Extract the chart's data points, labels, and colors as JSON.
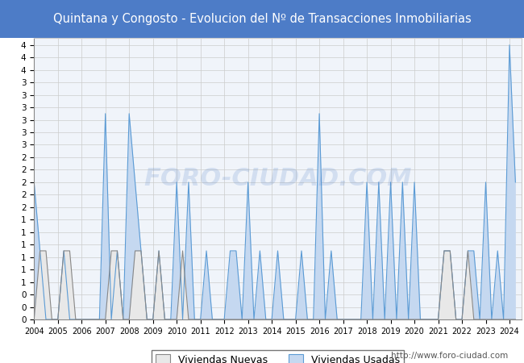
{
  "title": "Quintana y Congosto - Evolucion del Nº de Transacciones Inmobiliarias",
  "title_color": "white",
  "title_bg_color": "#4d7cc7",
  "years_labels": [
    2004,
    2005,
    2006,
    2007,
    2008,
    2009,
    2010,
    2011,
    2012,
    2013,
    2014,
    2015,
    2016,
    2017,
    2018,
    2019,
    2020,
    2021,
    2022,
    2023,
    2024
  ],
  "usadas_quarterly": [
    2,
    1,
    0,
    0,
    0,
    1,
    0,
    0,
    0,
    0,
    0,
    0,
    3,
    0,
    1,
    0,
    3,
    2,
    1,
    0,
    0,
    1,
    0,
    0,
    2,
    0,
    2,
    0,
    0,
    1,
    0,
    0,
    0,
    1,
    1,
    0,
    2,
    0,
    1,
    0,
    0,
    1,
    0,
    0,
    0,
    1,
    0,
    0,
    3,
    0,
    1,
    0,
    0,
    0,
    0,
    0,
    2,
    0,
    2,
    0,
    2,
    0,
    2,
    0,
    2,
    0,
    0,
    0,
    0,
    1,
    1,
    0,
    0,
    1,
    1,
    0,
    2,
    0,
    1,
    0,
    4,
    2
  ],
  "nuevas_quarterly": [
    0,
    1,
    1,
    0,
    0,
    1,
    1,
    0,
    0,
    0,
    0,
    0,
    0,
    1,
    1,
    0,
    0,
    1,
    1,
    0,
    0,
    1,
    0,
    0,
    0,
    1,
    0,
    0,
    0,
    0,
    0,
    0,
    0,
    0,
    0,
    0,
    0,
    0,
    0,
    0,
    0,
    0,
    0,
    0,
    0,
    0,
    0,
    0,
    0,
    0,
    0,
    0,
    0,
    0,
    0,
    0,
    0,
    0,
    0,
    0,
    0,
    0,
    0,
    0,
    0,
    0,
    0,
    0,
    0,
    1,
    1,
    0,
    0,
    1,
    0,
    0,
    0,
    0,
    0,
    0,
    0,
    0
  ],
  "usadas_color": "#c5d8f0",
  "usadas_line_color": "#5b9bd5",
  "nuevas_color": "#e8e8e8",
  "nuevas_line_color": "#888888",
  "bg_color": "#f0f4fa",
  "watermark": "FORO-CIUDAD.COM",
  "url": "http://www.foro-ciudad.com",
  "legend_nuevas": "Viviendas Nuevas",
  "legend_usadas": "Viviendas Usadas",
  "n_years": 21,
  "quarters_per_year": 4,
  "total_points": 82,
  "ytick_count": 23
}
